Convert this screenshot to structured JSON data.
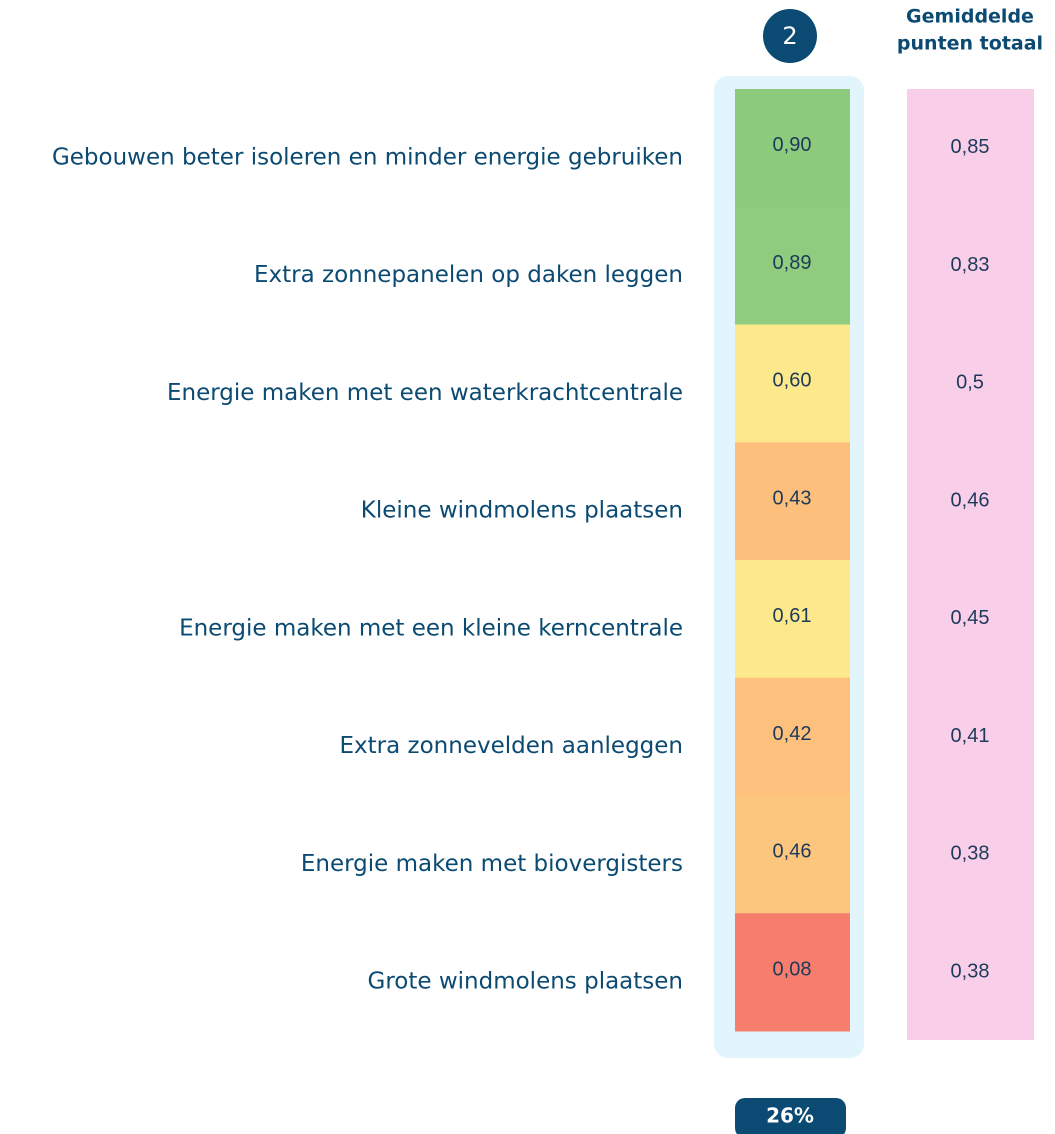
{
  "header": {
    "column": "2",
    "total_heading": [
      "Gemiddelde",
      "punten totaal"
    ]
  },
  "rows": [
    {
      "label": "Gebouwen beter isoleren en minder energie gebruiken",
      "value": "0,90",
      "total": "0,85",
      "color": "#8cca7c"
    },
    {
      "label": "Extra zonnepanelen op daken leggen",
      "value": "0,89",
      "total": "0,83",
      "color": "#8fcc7d"
    },
    {
      "label": "Energie maken met een waterkrachtcentrale",
      "value": "0,60",
      "total": "0,5",
      "color": "#fde98b"
    },
    {
      "label": "Kleine windmolens plaatsen",
      "value": "0,43",
      "total": "0,46",
      "color": "#fdc07c"
    },
    {
      "label": "Energie maken met een kleine kerncentrale",
      "value": "0,61",
      "total": "0,45",
      "color": "#fde98b"
    },
    {
      "label": "Extra zonnevelden aanleggen",
      "value": "0,42",
      "total": "0,41",
      "color": "#fdc17d"
    },
    {
      "label": "Energie maken met biovergisters",
      "value": "0,46",
      "total": "0,38",
      "color": "#fdc67f"
    },
    {
      "label": "Grote windmolens plaatsen",
      "value": "0,08",
      "total": "0,38",
      "color": "#f77d6d"
    }
  ],
  "footer": {
    "column": "26%"
  }
}
